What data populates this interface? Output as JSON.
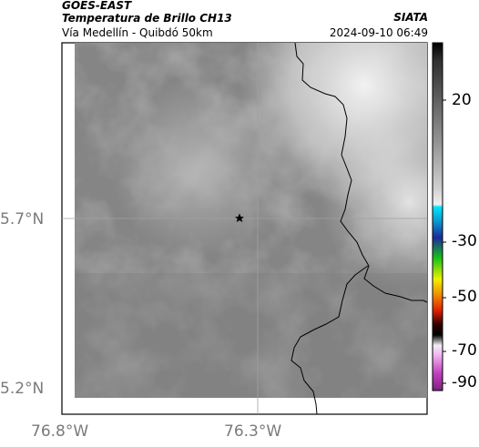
{
  "header": {
    "satellite": "GOES-EAST",
    "product": "Temperatura de Brillo CH13",
    "route": "Vía Medellín - Quibdó 50km",
    "organization": "SIATA",
    "timestamp": "2024-09-10 06:49"
  },
  "axes": {
    "lat_labels": [
      "5.7°N",
      "5.2°N"
    ],
    "lon_labels": [
      "76.8°W",
      "76.3°W"
    ]
  },
  "colorbar": {
    "tick_labels": [
      "20",
      "-30",
      "-50",
      "-70",
      "-90"
    ],
    "colors": {
      "black": "#000000",
      "gray_light": "#e8e8e8",
      "cyan": "#00e5ff",
      "blue": "#1a2a9c",
      "green": "#19c219",
      "yellow": "#f0f000",
      "red": "#e02000",
      "magenta": "#c040c0"
    }
  },
  "map": {
    "marker_icon": "star-icon",
    "gridline_color": "#a0a0a0",
    "border_color": "#000000"
  }
}
